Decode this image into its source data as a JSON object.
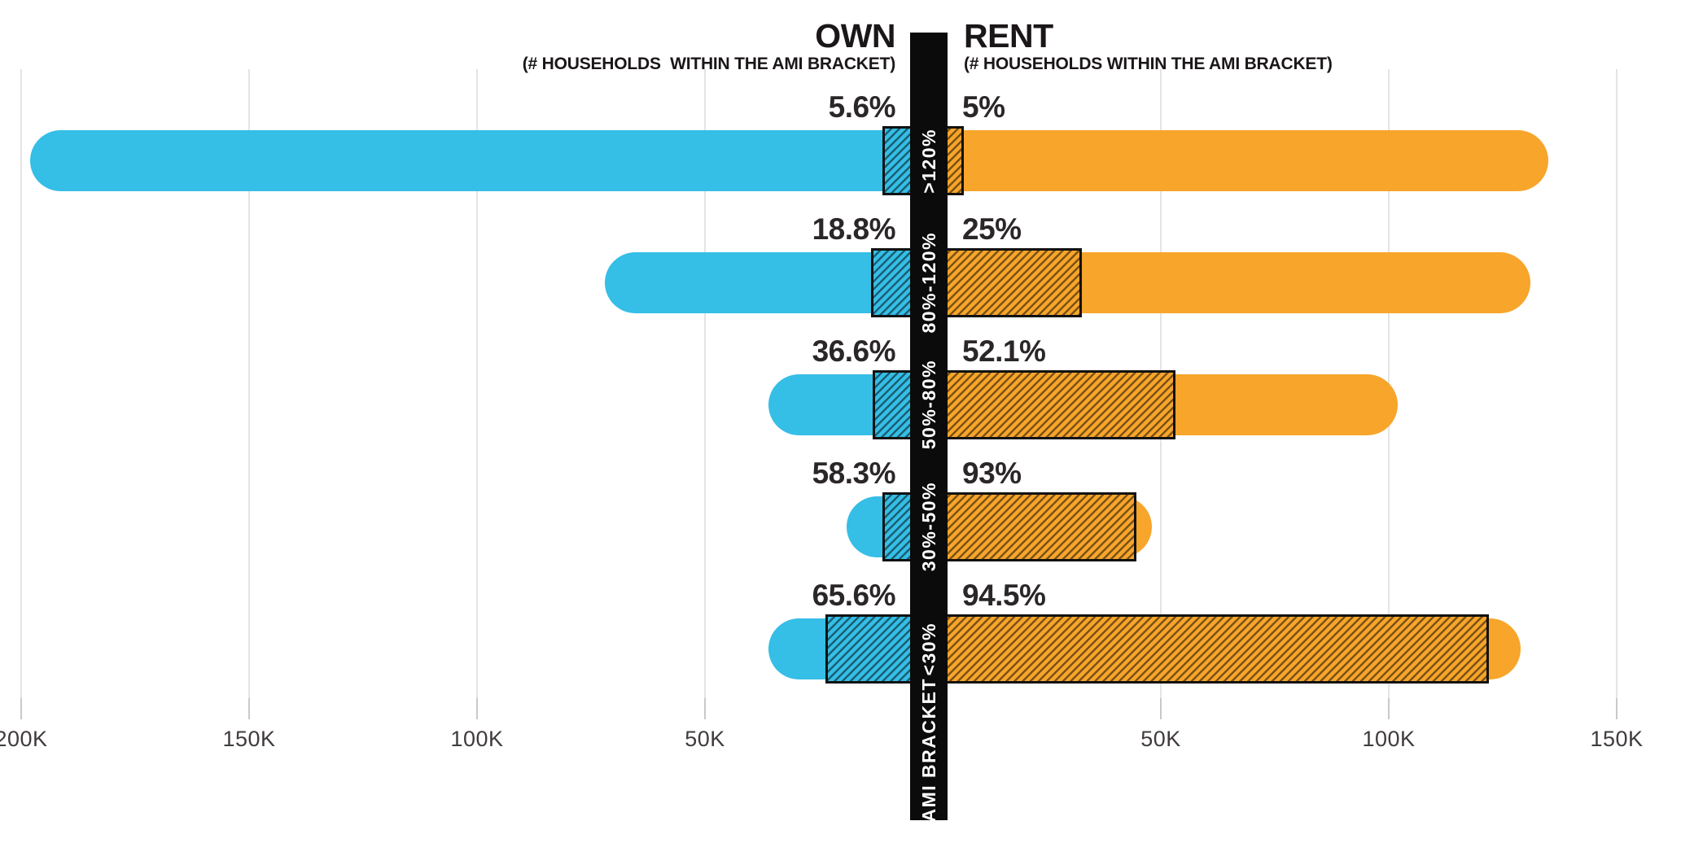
{
  "header": {
    "own_title": "OWN",
    "own_subtitle": "(# HOUSEHOLDS  WITHIN THE AMI BRACKET)",
    "rent_title": "RENT",
    "rent_subtitle": "(# HOUSEHOLDS WITHIN THE AMI BRACKET)"
  },
  "chart_data": {
    "type": "bar",
    "orientation": "horizontal-diverging",
    "categories": [
      ">120%",
      "80%-120%",
      "50%-80%",
      "30%-50%",
      "<30%"
    ],
    "center_axis_label": "AMI BRACKET",
    "series": [
      {
        "name": "OWN",
        "side": "left",
        "color": "#35bee6",
        "households_k": [
          198,
          72,
          36,
          19,
          36
        ],
        "pct_values": [
          5.6,
          18.8,
          36.6,
          58.3,
          65.6
        ],
        "pct_labels": [
          "5.6%",
          "18.8%",
          "36.6%",
          "58.3%",
          "65.6%"
        ]
      },
      {
        "name": "RENT",
        "side": "right",
        "color": "#f7a52b",
        "households_k": [
          135,
          131,
          102,
          48,
          129
        ],
        "pct_values": [
          5,
          25,
          52.1,
          93,
          94.5
        ],
        "pct_labels": [
          "5%",
          "25%",
          "52.1%",
          "93%",
          "94.5%"
        ]
      }
    ],
    "x_axis": {
      "unit": "K households",
      "tick_step_k": 50,
      "left_ticks_k": [
        200,
        150,
        100,
        50
      ],
      "right_ticks_k": [
        50,
        100,
        150
      ],
      "left_tick_labels": [
        "200K",
        "150K",
        "100K",
        "50K"
      ],
      "right_tick_labels": [
        "50K",
        "100K",
        "150K"
      ],
      "left_range_k": [
        0,
        200
      ],
      "right_range_k": [
        0,
        150
      ]
    },
    "grid": true,
    "legend_position": "none",
    "hatch_meaning": "share of households within the AMI bracket (percentage label)"
  },
  "colors": {
    "own_bar": "#35bee6",
    "rent_bar": "#f7a52b",
    "divider": "#0b0b0b",
    "pct_text": "#2b2728",
    "axis_text": "#403b3d",
    "gridline": "#e4e4e4",
    "hatch_border": "#121212"
  }
}
